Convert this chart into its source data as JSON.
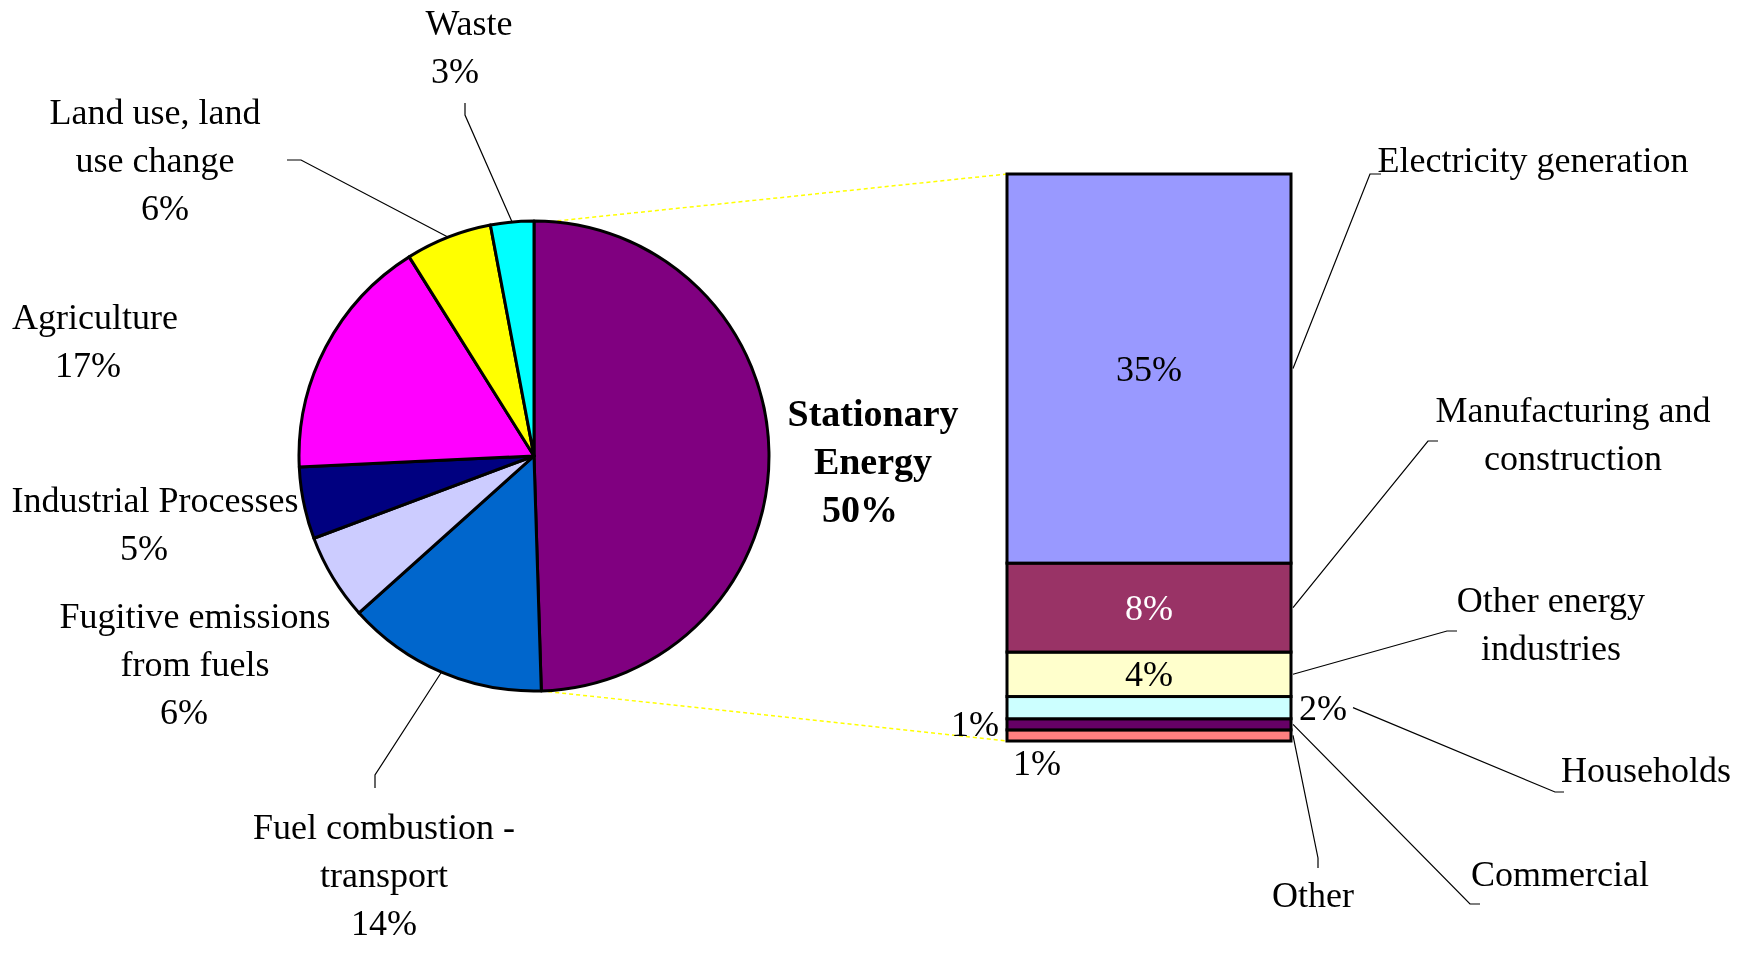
{
  "chart_data": [
    {
      "type": "pie",
      "categories": [
        "Stationary Energy",
        "Fuel combustion - transport",
        "Fugitive emissions from fuels",
        "Industrial Processes",
        "Agriculture",
        "Land use, land use change",
        "Waste"
      ],
      "values": [
        50,
        14,
        6,
        5,
        17,
        6,
        3
      ],
      "value_labels": [
        "50%",
        "14%",
        "6%",
        "5%",
        "17%",
        "6%",
        "3%"
      ],
      "colors": [
        "#800080",
        "#0066cc",
        "#ccccff",
        "#000080",
        "#ff00ff",
        "#ffff00",
        "#00ffff"
      ]
    },
    {
      "type": "bar",
      "stacked": true,
      "categories": [
        null
      ],
      "series": [
        {
          "name": "Other",
          "color": "#ff8080",
          "values": [
            1
          ],
          "value_labels": [
            "1%"
          ]
        },
        {
          "name": "Commercial",
          "color": "#660066",
          "values": [
            1
          ],
          "value_labels": [
            "1%"
          ]
        },
        {
          "name": "Households",
          "color": "#ccffff",
          "values": [
            2
          ],
          "value_labels": [
            "2%"
          ]
        },
        {
          "name": "Other energy industries",
          "color": "#ffffcc",
          "values": [
            4
          ],
          "value_labels": [
            "4%"
          ]
        },
        {
          "name": "Manufacturing and construction",
          "color": "#993366",
          "values": [
            8
          ],
          "value_labels": [
            "8%"
          ]
        },
        {
          "name": "Electricity generation",
          "color": "#9999ff",
          "values": [
            35
          ],
          "value_labels": [
            "35%"
          ]
        }
      ]
    }
  ]
}
